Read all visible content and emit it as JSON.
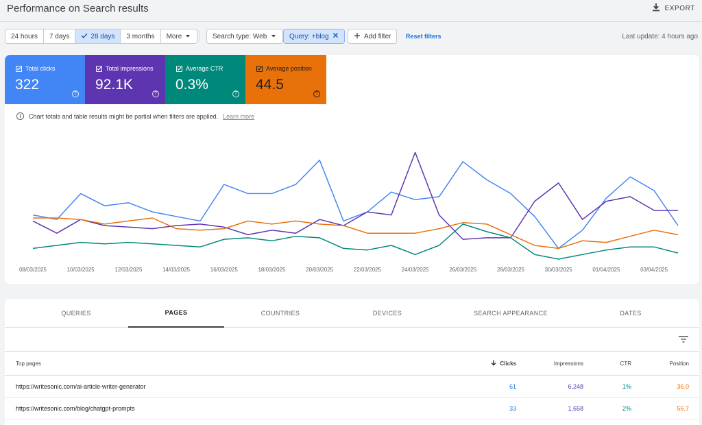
{
  "header": {
    "title": "Performance on Search results",
    "export_label": "EXPORT"
  },
  "filters": {
    "date_ranges": [
      {
        "label": "24 hours",
        "active": false
      },
      {
        "label": "7 days",
        "active": false
      },
      {
        "label": "28 days",
        "active": true
      },
      {
        "label": "3 months",
        "active": false
      },
      {
        "label": "More",
        "active": false
      }
    ],
    "search_type": "Search type: Web",
    "query_chip": "Query: +blog",
    "add_filter": "Add filter",
    "reset": "Reset filters",
    "last_update": "Last update: 4 hours ago"
  },
  "metrics": [
    {
      "label": "Total clicks",
      "value": "322",
      "color": "#4285f4"
    },
    {
      "label": "Total impressions",
      "value": "92.1K",
      "color": "#5e35b1"
    },
    {
      "label": "Average CTR",
      "value": "0.3%",
      "color": "#00897b"
    },
    {
      "label": "Average position",
      "value": "44.5",
      "color": "#e8710a"
    }
  ],
  "notice": {
    "text": "Chart totals and table results might be partial when filters are applied.",
    "link": "Learn more"
  },
  "chart_data": {
    "type": "line",
    "x": [
      "08/03/2025",
      "09/03/2025",
      "10/03/2025",
      "11/03/2025",
      "12/03/2025",
      "13/03/2025",
      "14/03/2025",
      "15/03/2025",
      "16/03/2025",
      "17/03/2025",
      "18/03/2025",
      "19/03/2025",
      "20/03/2025",
      "21/03/2025",
      "22/03/2025",
      "23/03/2025",
      "24/03/2025",
      "25/03/2025",
      "26/03/2025",
      "27/03/2025",
      "28/03/2025",
      "29/03/2025",
      "30/03/2025",
      "31/03/2025",
      "01/04/2025",
      "02/04/2025",
      "03/04/2025",
      "04/04/2025"
    ],
    "x_tick_labels": [
      "08/03/2025",
      "10/03/2025",
      "12/03/2025",
      "14/03/2025",
      "16/03/2025",
      "18/03/2025",
      "20/03/2025",
      "22/03/2025",
      "24/03/2025",
      "26/03/2025",
      "28/03/2025",
      "30/03/2025",
      "01/04/2025",
      "03/04/2025"
    ],
    "series": [
      {
        "key": "clicks",
        "color": "#4285f4",
        "values": [
          14.5,
          13.0,
          21.5,
          17.5,
          18.5,
          15.5,
          14.0,
          12.5,
          24.5,
          21.5,
          21.5,
          24.5,
          32.5,
          12.5,
          15.5,
          22.0,
          19.5,
          20.5,
          32.0,
          26.0,
          21.5,
          14.0,
          3.5,
          9.5,
          20.0,
          27.0,
          22.5,
          11.0
        ]
      },
      {
        "key": "impressions",
        "color": "#5e35b1",
        "values": [
          12.5,
          8.5,
          13.0,
          11.0,
          10.5,
          10.0,
          11.0,
          11.5,
          10.5,
          8.0,
          9.5,
          8.5,
          13.0,
          11.0,
          15.5,
          14.5,
          35.0,
          14.5,
          6.5,
          7.0,
          7.0,
          19.0,
          25.0,
          13.0,
          19.0,
          20.5,
          16.0,
          16.0
        ]
      },
      {
        "key": "ctr",
        "color": "#00897b",
        "values": [
          3.5,
          4.5,
          5.5,
          5.0,
          5.5,
          5.0,
          4.5,
          4.0,
          6.5,
          7.0,
          6.0,
          7.5,
          7.0,
          3.5,
          3.0,
          4.5,
          1.5,
          4.5,
          11.5,
          9.0,
          7.0,
          1.5,
          0.0,
          1.5,
          3.0,
          4.0,
          4.0,
          2.0
        ]
      },
      {
        "key": "position",
        "color": "#e8710a",
        "values": [
          13.5,
          13.5,
          13.0,
          11.5,
          12.5,
          13.5,
          10.0,
          9.5,
          10.0,
          12.5,
          11.5,
          12.5,
          11.5,
          11.0,
          8.5,
          8.5,
          8.5,
          10.0,
          12.0,
          11.5,
          8.0,
          4.5,
          3.5,
          6.0,
          5.5,
          7.5,
          9.5,
          8.0
        ]
      }
    ],
    "ylim": [
      0,
      36
    ],
    "grid": false,
    "legend": "none"
  },
  "tabs": [
    {
      "label": "QUERIES",
      "active": false
    },
    {
      "label": "PAGES",
      "active": true
    },
    {
      "label": "COUNTRIES",
      "active": false
    },
    {
      "label": "DEVICES",
      "active": false
    },
    {
      "label": "SEARCH APPEARANCE",
      "active": false
    },
    {
      "label": "DATES",
      "active": false
    }
  ],
  "table": {
    "columns": {
      "page": "Top pages",
      "clicks": "Clicks",
      "impressions": "Impressions",
      "ctr": "CTR",
      "position": "Position"
    },
    "rows": [
      {
        "page": "https://writesonic.com/ai-article-writer-generator",
        "clicks": "61",
        "impressions": "6,248",
        "ctr": "1%",
        "position": "36.0"
      },
      {
        "page": "https://writesonic.com/blog/chatgpt-prompts",
        "clicks": "33",
        "impressions": "1,658",
        "ctr": "2%",
        "position": "56.7"
      }
    ]
  }
}
